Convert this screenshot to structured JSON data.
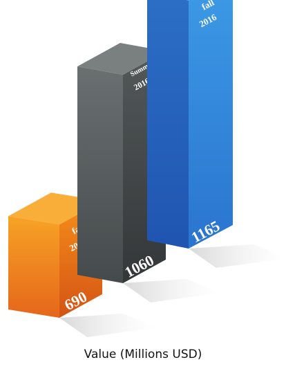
{
  "chart_data": {
    "type": "bar",
    "categories": [
      "fall\n2015",
      "Summer\n2016",
      "fall\n2016"
    ],
    "series": [
      {
        "values": [
          690,
          1060,
          1165
        ]
      }
    ],
    "ylim": [
      0,
      1200
    ],
    "xlabel": "Value (Millions USD)",
    "colors": [
      "#F08A12",
      "#4E5354",
      "#2F86D8"
    ],
    "grid": false,
    "legend": "none"
  }
}
